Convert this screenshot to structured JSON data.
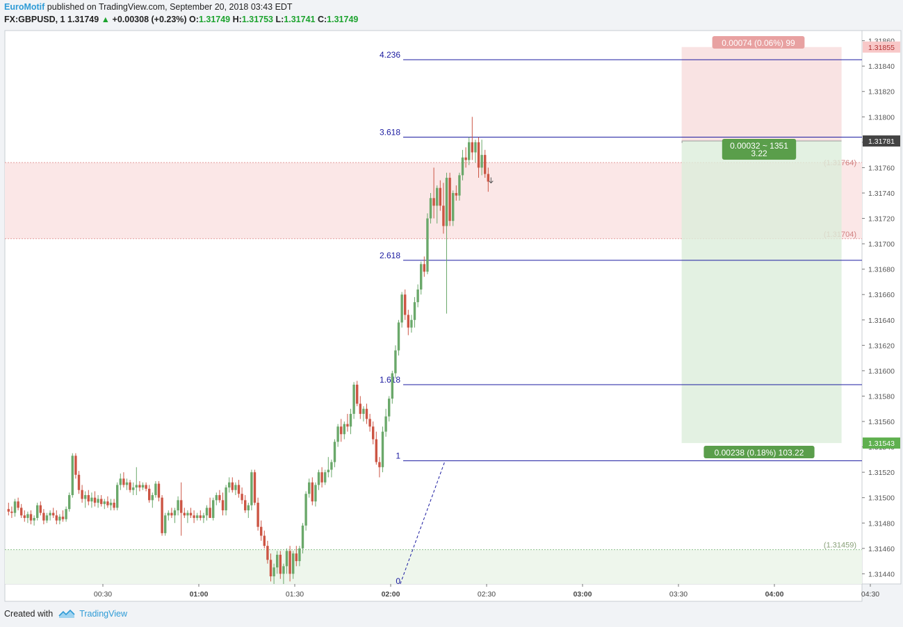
{
  "header": {
    "author": "EuroMotif",
    "published_text": " published on TradingView.com, September 20, 2018 03:43 EDT",
    "symbol": "FX:GBPUSD, 1",
    "last": "1.31749",
    "change": "+0.00308 (+0.23%)",
    "o_label": "O:",
    "o_value": "1.31749",
    "h_label": "H:",
    "h_value": "1.31753",
    "l_label": "L:",
    "l_value": "1.31741",
    "c_label": "C:",
    "c_value": "1.31749"
  },
  "footer": {
    "created_with": "Created with",
    "brand": "TradingView"
  },
  "colors": {
    "up": "#6aa86a",
    "down": "#cc5544",
    "fib": "#1a1aa0",
    "loss_zone": "#f8dede",
    "profit_zone": "#dceedb",
    "axis_text": "#555555",
    "badge_red": "#e8a1a1",
    "badge_green": "#5a9e4b",
    "badge_dark": "#444444"
  },
  "chart_data": {
    "type": "candlestick",
    "symbol": "GBPUSD",
    "timeframe": "1 minute",
    "x_ticks": [
      "00:30",
      "01:00",
      "01:30",
      "02:00",
      "02:30",
      "03:00",
      "03:30",
      "04:00",
      "04:30"
    ],
    "x_ticks_bold": [
      "01:00",
      "02:00",
      "03:00",
      "04:00"
    ],
    "y_ticks": [
      "1.31440",
      "1.31460",
      "1.31480",
      "1.31500",
      "1.31520",
      "1.31540",
      "1.31560",
      "1.31580",
      "1.31600",
      "1.31620",
      "1.31640",
      "1.31660",
      "1.31680",
      "1.31700",
      "1.31720",
      "1.31740",
      "1.31760",
      "1.31780",
      "1.31800",
      "1.31820",
      "1.31840",
      "1.31860"
    ],
    "ylim": [
      1.31432,
      1.31868
    ],
    "xlim_minutes": [
      0,
      270
    ],
    "fib_extension": {
      "levels": [
        {
          "label": "0",
          "price": 1.31432
        },
        {
          "label": "1",
          "price": 1.31529
        },
        {
          "label": "1.618",
          "price": 1.31589
        },
        {
          "label": "2.618",
          "price": 1.31687
        },
        {
          "label": "3.618",
          "price": 1.31784
        },
        {
          "label": "4.236",
          "price": 1.31845
        }
      ],
      "anchor_from": {
        "t": 123,
        "price": 1.31432
      },
      "anchor_to": {
        "t": 137,
        "price": 1.31529
      }
    },
    "zones": [
      {
        "name": "resistance",
        "top_label": "(1.31764)",
        "top": 1.31764,
        "bottom_label": "(1.31704)",
        "bottom": 1.31704
      },
      {
        "name": "support",
        "label": "(1.31459)",
        "top": 1.31459
      }
    ],
    "position": {
      "entry": 1.31781,
      "stop": 1.31855,
      "target": 1.31543,
      "t_start": 211,
      "t_end": 261,
      "stop_label": "0.00074 (0.06%) 99",
      "entry_label_line1": "0.00032 ~ 1351",
      "entry_label_line2": "3.22",
      "target_label": "0.00238 (0.18%) 103.22"
    },
    "price_tags": [
      {
        "label": "1.31855",
        "price": 1.31855,
        "style": "red"
      },
      {
        "label": "1.31781",
        "price": 1.31781,
        "style": "dark"
      },
      {
        "label": "1.31543",
        "price": 1.31543,
        "style": "green"
      }
    ],
    "candles": [
      [
        1.31491,
        1.31496,
        1.31486,
        1.31489
      ],
      [
        1.31489,
        1.31493,
        1.31484,
        1.31488
      ],
      [
        1.31488,
        1.31499,
        1.31485,
        1.31497
      ],
      [
        1.31497,
        1.315,
        1.3149,
        1.31492
      ],
      [
        1.31492,
        1.31495,
        1.31484,
        1.31486
      ],
      [
        1.31486,
        1.3149,
        1.31481,
        1.31484
      ],
      [
        1.31484,
        1.31489,
        1.3148,
        1.31487
      ],
      [
        1.31487,
        1.3149,
        1.31479,
        1.31482
      ],
      [
        1.31482,
        1.31486,
        1.31478,
        1.31484
      ],
      [
        1.31484,
        1.31496,
        1.31482,
        1.31494
      ],
      [
        1.31494,
        1.31497,
        1.31486,
        1.31488
      ],
      [
        1.31488,
        1.31491,
        1.31479,
        1.31482
      ],
      [
        1.31482,
        1.31488,
        1.3148,
        1.31486
      ],
      [
        1.31486,
        1.3149,
        1.31482,
        1.31488
      ],
      [
        1.31488,
        1.31492,
        1.31484,
        1.31486
      ],
      [
        1.31486,
        1.3149,
        1.31479,
        1.31482
      ],
      [
        1.31482,
        1.31487,
        1.31479,
        1.31485
      ],
      [
        1.31485,
        1.3149,
        1.31481,
        1.31483
      ],
      [
        1.31483,
        1.31493,
        1.31481,
        1.31491
      ],
      [
        1.31491,
        1.31504,
        1.31489,
        1.31502
      ],
      [
        1.31502,
        1.31535,
        1.315,
        1.31533
      ],
      [
        1.31533,
        1.31535,
        1.31515,
        1.31518
      ],
      [
        1.31518,
        1.31521,
        1.31503,
        1.31506
      ],
      [
        1.31506,
        1.3151,
        1.31496,
        1.31499
      ],
      [
        1.31499,
        1.31505,
        1.31492,
        1.31502
      ],
      [
        1.31502,
        1.31506,
        1.31494,
        1.31497
      ],
      [
        1.31497,
        1.31504,
        1.31492,
        1.315
      ],
      [
        1.315,
        1.31505,
        1.31493,
        1.31496
      ],
      [
        1.31496,
        1.31502,
        1.31492,
        1.31499
      ],
      [
        1.31499,
        1.31502,
        1.31493,
        1.31495
      ],
      [
        1.31495,
        1.31499,
        1.31491,
        1.31497
      ],
      [
        1.31497,
        1.31501,
        1.31492,
        1.31494
      ],
      [
        1.31494,
        1.31499,
        1.3149,
        1.31496
      ],
      [
        1.31496,
        1.31499,
        1.3149,
        1.31492
      ],
      [
        1.31492,
        1.31512,
        1.3149,
        1.3151
      ],
      [
        1.3151,
        1.31519,
        1.31506,
        1.31515
      ],
      [
        1.31515,
        1.3152,
        1.31508,
        1.3151
      ],
      [
        1.3151,
        1.31515,
        1.31506,
        1.31512
      ],
      [
        1.31512,
        1.31514,
        1.31504,
        1.31506
      ],
      [
        1.31506,
        1.31512,
        1.31502,
        1.31508
      ],
      [
        1.31508,
        1.31524,
        1.31502,
        1.3151
      ],
      [
        1.3151,
        1.31513,
        1.31505,
        1.31508
      ],
      [
        1.31508,
        1.31512,
        1.31506,
        1.3151
      ],
      [
        1.3151,
        1.31512,
        1.31505,
        1.31507
      ],
      [
        1.31507,
        1.3151,
        1.31496,
        1.31498
      ],
      [
        1.31498,
        1.31504,
        1.31492,
        1.31502
      ],
      [
        1.31502,
        1.31513,
        1.315,
        1.31511
      ],
      [
        1.31511,
        1.31513,
        1.31497,
        1.315
      ],
      [
        1.315,
        1.31502,
        1.3147,
        1.31472
      ],
      [
        1.31472,
        1.31488,
        1.3147,
        1.31486
      ],
      [
        1.31486,
        1.3149,
        1.31482,
        1.31488
      ],
      [
        1.31488,
        1.31492,
        1.31484,
        1.31486
      ],
      [
        1.31486,
        1.31492,
        1.3148,
        1.3149
      ],
      [
        1.3149,
        1.31501,
        1.31486,
        1.31498
      ],
      [
        1.31498,
        1.31512,
        1.3147,
        1.31488
      ],
      [
        1.31488,
        1.31492,
        1.31484,
        1.31486
      ],
      [
        1.31486,
        1.3149,
        1.3148,
        1.31488
      ],
      [
        1.31488,
        1.31492,
        1.31484,
        1.31486
      ],
      [
        1.31486,
        1.3149,
        1.3148,
        1.31484
      ],
      [
        1.31484,
        1.31488,
        1.31482,
        1.31486
      ],
      [
        1.31486,
        1.3149,
        1.31482,
        1.31484
      ],
      [
        1.31484,
        1.31488,
        1.3148,
        1.31486
      ],
      [
        1.31486,
        1.31494,
        1.31482,
        1.31492
      ],
      [
        1.31492,
        1.315,
        1.31488,
        1.31484
      ],
      [
        1.31484,
        1.315,
        1.31482,
        1.31498
      ],
      [
        1.31498,
        1.31504,
        1.31494,
        1.31502
      ],
      [
        1.31502,
        1.31506,
        1.31496,
        1.31498
      ],
      [
        1.31498,
        1.31504,
        1.31486,
        1.3149
      ],
      [
        1.3149,
        1.3151,
        1.31486,
        1.31508
      ],
      [
        1.31508,
        1.31516,
        1.31504,
        1.31512
      ],
      [
        1.31512,
        1.31516,
        1.31504,
        1.31506
      ],
      [
        1.31506,
        1.31512,
        1.31502,
        1.3151
      ],
      [
        1.3151,
        1.31514,
        1.315,
        1.31503
      ],
      [
        1.31503,
        1.31508,
        1.31495,
        1.31498
      ],
      [
        1.31498,
        1.31502,
        1.31488,
        1.3149
      ],
      [
        1.3149,
        1.31496,
        1.31484,
        1.31494
      ],
      [
        1.31494,
        1.31522,
        1.3149,
        1.3152
      ],
      [
        1.3152,
        1.31522,
        1.31494,
        1.31496
      ],
      [
        1.31496,
        1.315,
        1.31474,
        1.31477
      ],
      [
        1.31477,
        1.31482,
        1.31466,
        1.3147
      ],
      [
        1.3147,
        1.31474,
        1.3146,
        1.31462
      ],
      [
        1.31462,
        1.31466,
        1.31448,
        1.31451
      ],
      [
        1.31451,
        1.31456,
        1.31434,
        1.31438
      ],
      [
        1.31438,
        1.31448,
        1.31432,
        1.31445
      ],
      [
        1.31445,
        1.31458,
        1.3144,
        1.31455
      ],
      [
        1.31455,
        1.31458,
        1.31436,
        1.3144
      ],
      [
        1.3144,
        1.31448,
        1.31432,
        1.31446
      ],
      [
        1.31446,
        1.3146,
        1.3144,
        1.31458
      ],
      [
        1.31458,
        1.31462,
        1.31434,
        1.3144
      ],
      [
        1.3144,
        1.31458,
        1.31436,
        1.31456
      ],
      [
        1.31456,
        1.31462,
        1.31446,
        1.3145
      ],
      [
        1.3145,
        1.31462,
        1.31446,
        1.3146
      ],
      [
        1.3146,
        1.3148,
        1.31456,
        1.31478
      ],
      [
        1.31478,
        1.31505,
        1.31474,
        1.31503
      ],
      [
        1.31503,
        1.31515,
        1.315,
        1.31512
      ],
      [
        1.31512,
        1.31516,
        1.31494,
        1.31497
      ],
      [
        1.31497,
        1.31512,
        1.31493,
        1.3151
      ],
      [
        1.3151,
        1.31522,
        1.31506,
        1.3152
      ],
      [
        1.3152,
        1.31524,
        1.31508,
        1.31512
      ],
      [
        1.31512,
        1.31522,
        1.3151,
        1.3152
      ],
      [
        1.3152,
        1.31532,
        1.31516,
        1.31522
      ],
      [
        1.31522,
        1.3153,
        1.31516,
        1.31528
      ],
      [
        1.31528,
        1.31546,
        1.31524,
        1.31544
      ],
      [
        1.31544,
        1.31558,
        1.3154,
        1.31556
      ],
      [
        1.31556,
        1.31562,
        1.31544,
        1.3155
      ],
      [
        1.3155,
        1.3156,
        1.31546,
        1.31558
      ],
      [
        1.31558,
        1.31566,
        1.31552,
        1.31556
      ],
      [
        1.31556,
        1.3157,
        1.3155,
        1.31566
      ],
      [
        1.31566,
        1.31591,
        1.31562,
        1.31589
      ],
      [
        1.31589,
        1.31592,
        1.31572,
        1.31574
      ],
      [
        1.31574,
        1.3158,
        1.31562,
        1.31566
      ],
      [
        1.31566,
        1.31572,
        1.3156,
        1.3157
      ],
      [
        1.3157,
        1.31574,
        1.31558,
        1.31562
      ],
      [
        1.31562,
        1.31566,
        1.31552,
        1.31556
      ],
      [
        1.31556,
        1.3156,
        1.31542,
        1.31546
      ],
      [
        1.31546,
        1.31552,
        1.31526,
        1.31528
      ],
      [
        1.31528,
        1.31532,
        1.31516,
        1.31524
      ],
      [
        1.31524,
        1.31556,
        1.3152,
        1.31552
      ],
      [
        1.31552,
        1.3157,
        1.31548,
        1.31564
      ],
      [
        1.31564,
        1.3158,
        1.3156,
        1.31578
      ],
      [
        1.31578,
        1.316,
        1.31574,
        1.31598
      ],
      [
        1.31598,
        1.3162,
        1.31594,
        1.31616
      ],
      [
        1.31616,
        1.3164,
        1.31612,
        1.31638
      ],
      [
        1.31638,
        1.31662,
        1.31634,
        1.3166
      ],
      [
        1.3166,
        1.31664,
        1.3164,
        1.31644
      ],
      [
        1.31644,
        1.31648,
        1.31628,
        1.31634
      ],
      [
        1.31634,
        1.31644,
        1.3163,
        1.3164
      ],
      [
        1.3164,
        1.31658,
        1.31634,
        1.31654
      ],
      [
        1.31654,
        1.31668,
        1.3165,
        1.31664
      ],
      [
        1.31664,
        1.31686,
        1.3166,
        1.31684
      ],
      [
        1.31684,
        1.3169,
        1.31674,
        1.31678
      ],
      [
        1.31678,
        1.31724,
        1.31676,
        1.3172
      ],
      [
        1.3172,
        1.3174,
        1.31716,
        1.31736
      ],
      [
        1.31736,
        1.3176,
        1.3172,
        1.3173
      ],
      [
        1.3173,
        1.31746,
        1.31716,
        1.31744
      ],
      [
        1.31744,
        1.3175,
        1.31726,
        1.3173
      ],
      [
        1.3173,
        1.31748,
        1.31708,
        1.31714
      ],
      [
        1.31714,
        1.31756,
        1.31645,
        1.31752
      ],
      [
        1.31752,
        1.31756,
        1.31714,
        1.31718
      ],
      [
        1.31718,
        1.31742,
        1.31714,
        1.3174
      ],
      [
        1.3174,
        1.31746,
        1.31734,
        1.31738
      ],
      [
        1.31738,
        1.31756,
        1.31734,
        1.31754
      ],
      [
        1.31754,
        1.31774,
        1.3175,
        1.31768
      ],
      [
        1.31768,
        1.31776,
        1.3176,
        1.31766
      ],
      [
        1.31766,
        1.31784,
        1.31762,
        1.3178
      ],
      [
        1.3178,
        1.318,
        1.31766,
        1.31772
      ],
      [
        1.31772,
        1.31782,
        1.31764,
        1.3178
      ],
      [
        1.3178,
        1.31784,
        1.31752,
        1.3176
      ],
      [
        1.3176,
        1.31782,
        1.31754,
        1.3177
      ],
      [
        1.3177,
        1.31774,
        1.31752,
        1.31755
      ],
      [
        1.31755,
        1.3176,
        1.31741,
        1.31749
      ]
    ]
  }
}
